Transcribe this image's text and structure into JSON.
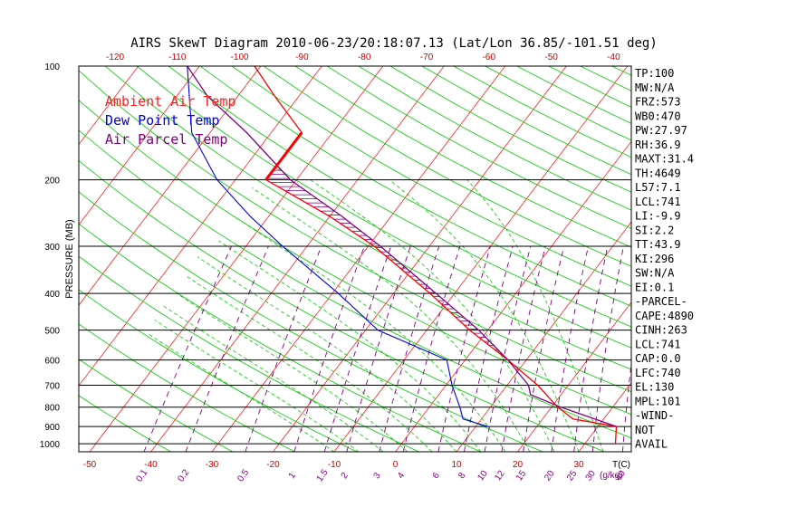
{
  "chart_data": {
    "type": "line",
    "title": "AIRS SkewT Diagram 2010-06-23/20:18:07.13 (Lat/Lon 36.85/-101.51 deg)",
    "ylabel": "PRESSURE (MB)",
    "y_scale": "log",
    "ylim": [
      1050,
      100
    ],
    "y_ticks": [
      "100",
      "200",
      "300",
      "400",
      "500",
      "600",
      "700",
      "800",
      "900",
      "1000"
    ],
    "y_tick_values": [
      100,
      200,
      300,
      400,
      500,
      600,
      700,
      800,
      900,
      1000
    ],
    "x_bottom_ticks": [
      "-50",
      "-40",
      "-30",
      "-20",
      "-10",
      "0",
      "10",
      "20",
      "30"
    ],
    "x_bottom_label": "T(C)",
    "x_top_ticks": [
      "-120",
      "-110",
      "-100",
      "-90",
      "-80",
      "-70",
      "-60",
      "-50",
      "-40"
    ],
    "mixing_ratio_ticks": [
      "0.1",
      "0.2",
      "0.5",
      "1",
      "1.5",
      "2",
      "3",
      "4",
      "6",
      "8",
      "10",
      "12",
      "15",
      "20",
      "25",
      "30",
      "40"
    ],
    "mixing_ratio_label": "g/kg",
    "legend": [
      {
        "label": "Ambient Air Temp",
        "color": "#ff2020"
      },
      {
        "label": "Dew Point Temp",
        "color": "#0000dd"
      },
      {
        "label": "Air Parcel Temp",
        "color": "#800080"
      }
    ],
    "series": [
      {
        "name": "Ambient Air Temp",
        "pressure": [
          1000,
          900,
          860,
          800,
          700,
          600,
          500,
          400,
          300,
          250,
          200,
          150,
          120,
          100
        ],
        "temperature": [
          35,
          33,
          25,
          21,
          15,
          7,
          -3,
          -14,
          -29,
          -40,
          -55,
          -55,
          -64,
          -71
        ]
      },
      {
        "name": "Dew Point Temp",
        "pressure": [
          900,
          860,
          800,
          700,
          600,
          500,
          400,
          300,
          250,
          200,
          150,
          100
        ],
        "temperature": [
          12,
          7,
          5,
          1,
          -3,
          -18,
          -29,
          -44,
          -53,
          -63,
          -73,
          -82
        ]
      },
      {
        "name": "Air Parcel Temp",
        "pressure": [
          900,
          800,
          741,
          700,
          600,
          500,
          400,
          300,
          250,
          200,
          150,
          120,
          100
        ],
        "temperature": [
          33,
          21.5,
          15,
          13.5,
          7,
          -1.5,
          -13,
          -28,
          -38,
          -51,
          -64,
          -75,
          -82
        ]
      }
    ],
    "grid": true
  },
  "indices": [
    "TP:100",
    "MW:N/A",
    "FRZ:573",
    "WB0:470",
    "PW:27.97",
    "RH:36.9",
    "MAXT:31.4",
    "TH:4649",
    "L57:7.1",
    "LCL:741",
    "LI:-9.9",
    "SI:2.2",
    "TT:43.9",
    "KI:296",
    "SW:N/A",
    "EI:0.1",
    "-PARCEL-",
    "CAPE:4890",
    "CINH:263",
    "LCL:741",
    "CAP:0.0",
    "LFC:740",
    "EL:130",
    "MPL:101",
    "-WIND-",
    "NOT",
    "AVAIL"
  ],
  "colors": {
    "isotherm": "#ff2020",
    "dry_adiabat": "#00cc00",
    "moist_adiabat": "#00cc00",
    "mixing_ratio": "#800080",
    "ambient": "#ff0000",
    "dewpoint": "#0000dd",
    "parcel": "#800080",
    "cape_hatch": "#800080"
  }
}
